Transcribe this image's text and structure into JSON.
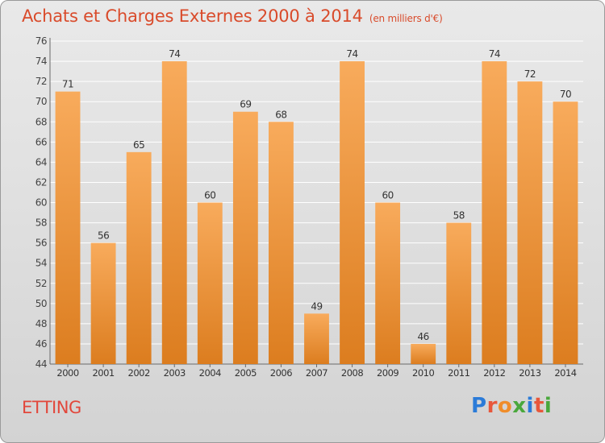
{
  "title": {
    "main": "Achats et Charges Externes 2000 à 2014",
    "unit": "(en milliers d'€)"
  },
  "commune": "ETTING",
  "logo": {
    "letters": [
      "P",
      "r",
      "o",
      "x",
      "i",
      "t",
      "i"
    ],
    "colors": [
      "#2b7bd8",
      "#e8573b",
      "#f08d2a",
      "#4aa83c",
      "#2b7bd8",
      "#e8573b",
      "#4aa83c"
    ]
  },
  "colors": {
    "bar_light": "#f8ab5c",
    "bar_dark": "#dc7d1f",
    "title": "#d94b2b",
    "axis_text": "#444444"
  },
  "chart_data": {
    "type": "bar",
    "categories": [
      "2000",
      "2001",
      "2002",
      "2003",
      "2004",
      "2005",
      "2006",
      "2007",
      "2008",
      "2009",
      "2010",
      "2011",
      "2012",
      "2013",
      "2014"
    ],
    "values": [
      71,
      56,
      65,
      74,
      60,
      69,
      68,
      49,
      74,
      60,
      46,
      58,
      74,
      72,
      70
    ],
    "ylim": [
      44,
      76
    ],
    "yticks": [
      44,
      46,
      48,
      50,
      52,
      54,
      56,
      58,
      60,
      62,
      64,
      66,
      68,
      70,
      72,
      74,
      76
    ],
    "grid": true,
    "data_labels": true
  }
}
